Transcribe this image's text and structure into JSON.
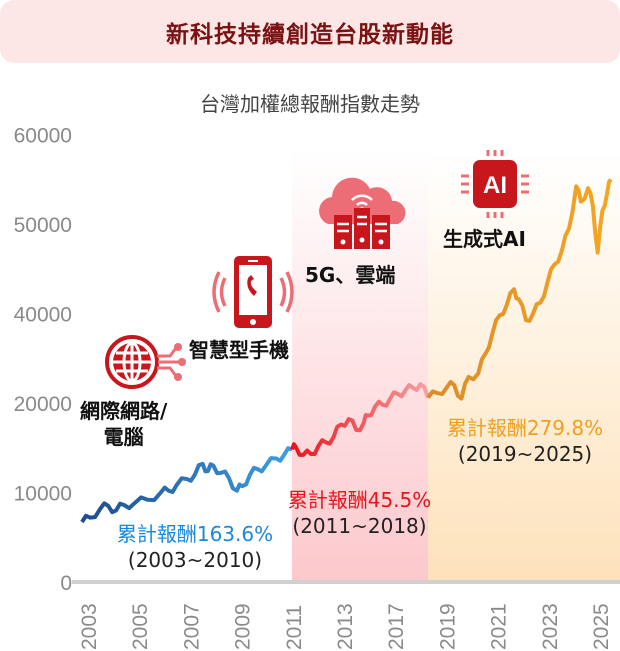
{
  "title": "新科技持續創造台股新動能",
  "chart_data": {
    "type": "line",
    "title": "台灣加權總報酬指數走勢",
    "xlabel": "",
    "ylabel": "",
    "y_tick_labels": [
      "0",
      "10000",
      "20000",
      "40000",
      "50000",
      "60000"
    ],
    "y_tick_values": [
      0,
      10000,
      20000,
      40000,
      50000,
      60000
    ],
    "x_tick_labels": [
      "2003",
      "2005",
      "2007",
      "2009",
      "2011",
      "2013",
      "2017",
      "2019",
      "2021",
      "2023",
      "2025"
    ],
    "grid": false,
    "periods": [
      {
        "name": "2003-2010",
        "color_start": "#1f4a8e",
        "color_end": "#3d9fe3",
        "shade": null,
        "points": [
          [
            2003.0,
            6700
          ],
          [
            2003.3,
            7200
          ],
          [
            2003.7,
            8200
          ],
          [
            2004.0,
            8500
          ],
          [
            2004.3,
            8000
          ],
          [
            2004.6,
            8600
          ],
          [
            2005.0,
            8800
          ],
          [
            2005.5,
            9200
          ],
          [
            2006.0,
            10000
          ],
          [
            2006.3,
            10200
          ],
          [
            2006.6,
            10800
          ],
          [
            2007.0,
            11500
          ],
          [
            2007.3,
            12000
          ],
          [
            2007.6,
            13200
          ],
          [
            2007.8,
            12400
          ],
          [
            2008.0,
            13000
          ],
          [
            2008.3,
            12200
          ],
          [
            2008.6,
            11600
          ],
          [
            2008.9,
            10200
          ],
          [
            2009.1,
            10700
          ],
          [
            2009.4,
            12000
          ],
          [
            2009.7,
            12600
          ],
          [
            2010.0,
            13000
          ],
          [
            2010.4,
            13800
          ],
          [
            2010.7,
            14200
          ],
          [
            2011.0,
            14800
          ]
        ]
      },
      {
        "name": "2011-2018",
        "color_start": "#e8141c",
        "color_end": "#f8a0a0",
        "shade": "#fcc8cc",
        "points": [
          [
            2011.0,
            14800
          ],
          [
            2011.2,
            15100
          ],
          [
            2011.6,
            14200
          ],
          [
            2012.0,
            14300
          ],
          [
            2012.4,
            15200
          ],
          [
            2012.8,
            15600
          ],
          [
            2013.2,
            16200
          ],
          [
            2013.6,
            17600
          ],
          [
            2014.0,
            18200
          ],
          [
            2014.4,
            17000
          ],
          [
            2014.8,
            17800
          ],
          [
            2015.0,
            18600
          ],
          [
            2015.4,
            19600
          ],
          [
            2015.8,
            19800
          ],
          [
            2016.2,
            21000
          ],
          [
            2016.6,
            22000
          ],
          [
            2017.0,
            22800
          ],
          [
            2017.4,
            23400
          ],
          [
            2017.8,
            24200
          ],
          [
            2018.2,
            21200
          ]
        ]
      },
      {
        "name": "2019-2025",
        "color_start": "#d98c2a",
        "color_end": "#f6a623",
        "shade": "#fde2bb",
        "points": [
          [
            2018.2,
            21200
          ],
          [
            2018.6,
            22200
          ],
          [
            2019.0,
            23600
          ],
          [
            2019.3,
            24000
          ],
          [
            2019.6,
            21000
          ],
          [
            2019.9,
            25800
          ],
          [
            2020.3,
            26600
          ],
          [
            2020.6,
            31000
          ],
          [
            2020.9,
            35600
          ],
          [
            2021.2,
            39600
          ],
          [
            2021.5,
            41000
          ],
          [
            2021.8,
            42700
          ],
          [
            2022.0,
            41600
          ],
          [
            2022.3,
            38500
          ],
          [
            2022.6,
            40000
          ],
          [
            2022.9,
            41200
          ],
          [
            2023.2,
            43500
          ],
          [
            2023.5,
            45500
          ],
          [
            2023.8,
            47000
          ],
          [
            2024.1,
            49500
          ],
          [
            2024.4,
            54200
          ],
          [
            2024.6,
            52500
          ],
          [
            2024.9,
            54000
          ],
          [
            2025.1,
            52000
          ],
          [
            2025.3,
            46800
          ],
          [
            2025.5,
            51500
          ],
          [
            2025.7,
            53500
          ],
          [
            2025.85,
            55000
          ]
        ]
      }
    ]
  },
  "eras": [
    {
      "label_line1": "網際網路/",
      "label_line2": "電腦",
      "icon": "globe-circuit-icon"
    },
    {
      "label": "智慧型手機",
      "icon": "smartphone-icon"
    },
    {
      "label": "5G、雲端",
      "icon": "cloud-server-icon"
    },
    {
      "label": "生成式AI",
      "icon": "ai-chip-icon",
      "chip_text": "AI"
    }
  ],
  "returns": [
    {
      "pct": "累計報酬163.6%",
      "years": "(2003~2010)",
      "color": "#1a88dc"
    },
    {
      "pct": "累計報酬45.5%",
      "years": "(2011~2018)",
      "color": "#e8141c"
    },
    {
      "pct": "累計報酬279.8%",
      "years": "(2019~2025)",
      "color": "#f0a01e"
    }
  ]
}
